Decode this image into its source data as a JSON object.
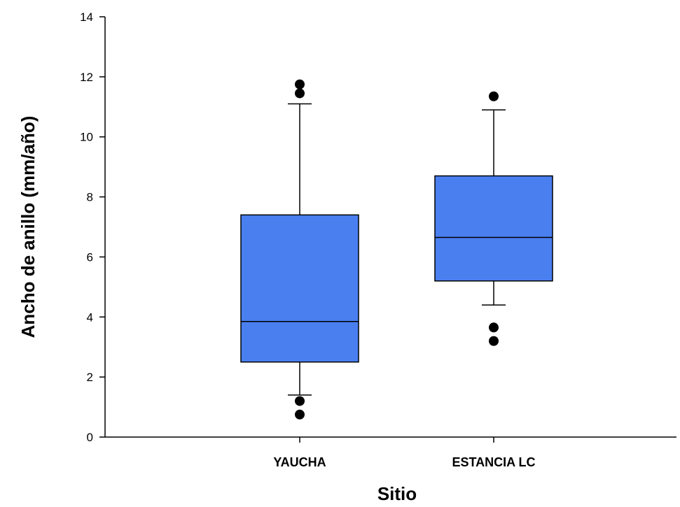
{
  "chart_data": {
    "type": "boxplot",
    "xlabel": "Sitio",
    "ylabel": "Ancho de anillo (mm/año)",
    "ylim": [
      0,
      14
    ],
    "yticks": [
      0,
      2,
      4,
      6,
      8,
      10,
      12,
      14
    ],
    "grid": false,
    "legend": "none",
    "box_color": "#4a7ff0",
    "categories": [
      "YAUCHA",
      "ESTANCIA LC"
    ],
    "boxes": [
      {
        "category": "YAUCHA",
        "whisker_low": 1.4,
        "q1": 2.5,
        "median": 3.85,
        "q3": 7.4,
        "whisker_high": 11.1,
        "outliers": [
          0.75,
          1.2,
          11.45,
          11.75
        ]
      },
      {
        "category": "ESTANCIA LC",
        "whisker_low": 4.4,
        "q1": 5.2,
        "median": 6.65,
        "q3": 8.7,
        "whisker_high": 10.9,
        "outliers": [
          3.2,
          3.65,
          11.35
        ]
      }
    ]
  }
}
